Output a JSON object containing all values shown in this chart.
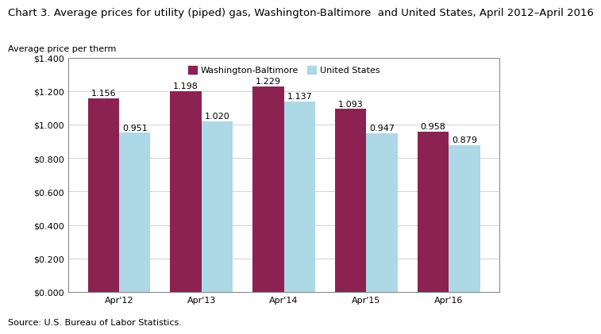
{
  "title": "Chart 3. Average prices for utility (piped) gas, Washington-Baltimore  and United States, April 2012–April 2016",
  "ylabel": "Average price per therm",
  "categories": [
    "Apr'12",
    "Apr'13",
    "Apr'14",
    "Apr'15",
    "Apr'16"
  ],
  "washington_values": [
    1.156,
    1.198,
    1.229,
    1.093,
    0.958
  ],
  "us_values": [
    0.951,
    1.02,
    1.137,
    0.947,
    0.879
  ],
  "washington_color": "#8B2252",
  "us_color": "#ADD8E6",
  "ylim": [
    0,
    1.4
  ],
  "yticks": [
    0.0,
    0.2,
    0.4,
    0.6,
    0.8,
    1.0,
    1.2,
    1.4
  ],
  "ytick_labels": [
    "$0.000",
    "$0.200",
    "$0.400",
    "$0.600",
    "$0.800",
    "$1.000",
    "$1.200",
    "$1.400"
  ],
  "legend_washington": "Washington-Baltimore",
  "legend_us": "United States",
  "source_text": "Source: U.S. Bureau of Labor Statistics.",
  "bar_width": 0.38,
  "title_fontsize": 9.5,
  "axis_label_fontsize": 8,
  "tick_fontsize": 8,
  "annotation_fontsize": 8,
  "legend_fontsize": 8
}
